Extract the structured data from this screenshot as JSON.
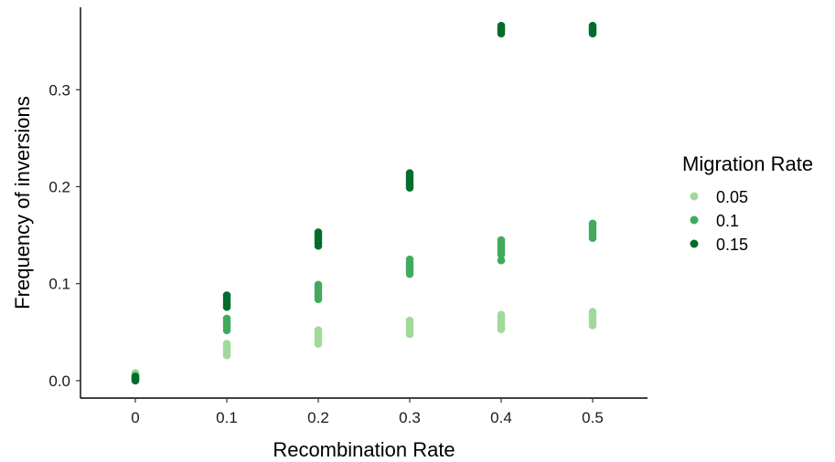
{
  "chart_data": {
    "type": "scatter",
    "title": "",
    "xlabel": "Recombination Rate",
    "ylabel": "Frequency of inversions",
    "xlim": [
      -0.06,
      0.56
    ],
    "ylim": [
      -0.018,
      0.385
    ],
    "xticks": [
      0,
      0.1,
      0.2,
      0.3,
      0.4,
      0.5
    ],
    "xtick_labels": [
      "0",
      "0.1",
      "0.2",
      "0.3",
      "0.4",
      "0.5"
    ],
    "yticks": [
      0,
      0.1,
      0.2,
      0.3
    ],
    "ytick_labels": [
      "0.0",
      "0.1",
      "0.2",
      "0.3"
    ],
    "grid": false,
    "legend": {
      "title": "Migration Rate",
      "position": "right"
    },
    "series": [
      {
        "name": "0.05",
        "color": "#a1d99b",
        "points": [
          [
            0,
            0.002
          ],
          [
            0,
            0.004
          ],
          [
            0,
            0.006
          ],
          [
            0,
            0.008
          ],
          [
            0.1,
            0.026
          ],
          [
            0.1,
            0.029
          ],
          [
            0.1,
            0.032
          ],
          [
            0.1,
            0.035
          ],
          [
            0.1,
            0.038
          ],
          [
            0.2,
            0.038
          ],
          [
            0.2,
            0.041
          ],
          [
            0.2,
            0.044
          ],
          [
            0.2,
            0.047
          ],
          [
            0.2,
            0.05
          ],
          [
            0.2,
            0.052
          ],
          [
            0.3,
            0.048
          ],
          [
            0.3,
            0.051
          ],
          [
            0.3,
            0.054
          ],
          [
            0.3,
            0.057
          ],
          [
            0.3,
            0.06
          ],
          [
            0.3,
            0.062
          ],
          [
            0.4,
            0.053
          ],
          [
            0.4,
            0.056
          ],
          [
            0.4,
            0.059
          ],
          [
            0.4,
            0.062
          ],
          [
            0.4,
            0.065
          ],
          [
            0.4,
            0.068
          ],
          [
            0.5,
            0.057
          ],
          [
            0.5,
            0.06
          ],
          [
            0.5,
            0.063
          ],
          [
            0.5,
            0.066
          ],
          [
            0.5,
            0.069
          ],
          [
            0.5,
            0.071
          ]
        ]
      },
      {
        "name": "0.1",
        "color": "#41ab5d",
        "points": [
          [
            0,
            0.001
          ],
          [
            0,
            0.003
          ],
          [
            0,
            0.005
          ],
          [
            0.1,
            0.052
          ],
          [
            0.1,
            0.055
          ],
          [
            0.1,
            0.058
          ],
          [
            0.1,
            0.061
          ],
          [
            0.1,
            0.064
          ],
          [
            0.2,
            0.084
          ],
          [
            0.2,
            0.087
          ],
          [
            0.2,
            0.09
          ],
          [
            0.2,
            0.093
          ],
          [
            0.2,
            0.096
          ],
          [
            0.2,
            0.099
          ],
          [
            0.3,
            0.11
          ],
          [
            0.3,
            0.113
          ],
          [
            0.3,
            0.116
          ],
          [
            0.3,
            0.119
          ],
          [
            0.3,
            0.122
          ],
          [
            0.3,
            0.125
          ],
          [
            0.4,
            0.124
          ],
          [
            0.4,
            0.13
          ],
          [
            0.4,
            0.133
          ],
          [
            0.4,
            0.136
          ],
          [
            0.4,
            0.139
          ],
          [
            0.4,
            0.142
          ],
          [
            0.4,
            0.145
          ],
          [
            0.5,
            0.147
          ],
          [
            0.5,
            0.15
          ],
          [
            0.5,
            0.153
          ],
          [
            0.5,
            0.156
          ],
          [
            0.5,
            0.159
          ],
          [
            0.5,
            0.162
          ]
        ]
      },
      {
        "name": "0.15",
        "color": "#006d2c",
        "points": [
          [
            0,
            0.0
          ],
          [
            0,
            0.002
          ],
          [
            0,
            0.004
          ],
          [
            0.1,
            0.076
          ],
          [
            0.1,
            0.079
          ],
          [
            0.1,
            0.082
          ],
          [
            0.1,
            0.085
          ],
          [
            0.1,
            0.088
          ],
          [
            0.2,
            0.139
          ],
          [
            0.2,
            0.142
          ],
          [
            0.2,
            0.145
          ],
          [
            0.2,
            0.148
          ],
          [
            0.2,
            0.151
          ],
          [
            0.2,
            0.153
          ],
          [
            0.3,
            0.199
          ],
          [
            0.3,
            0.202
          ],
          [
            0.3,
            0.205
          ],
          [
            0.3,
            0.208
          ],
          [
            0.3,
            0.211
          ],
          [
            0.3,
            0.214
          ],
          [
            0.4,
            0.358
          ],
          [
            0.4,
            0.36
          ],
          [
            0.4,
            0.362
          ],
          [
            0.4,
            0.364
          ],
          [
            0.4,
            0.366
          ],
          [
            0.5,
            0.358
          ],
          [
            0.5,
            0.36
          ],
          [
            0.5,
            0.362
          ],
          [
            0.5,
            0.364
          ],
          [
            0.5,
            0.366
          ]
        ]
      }
    ]
  }
}
